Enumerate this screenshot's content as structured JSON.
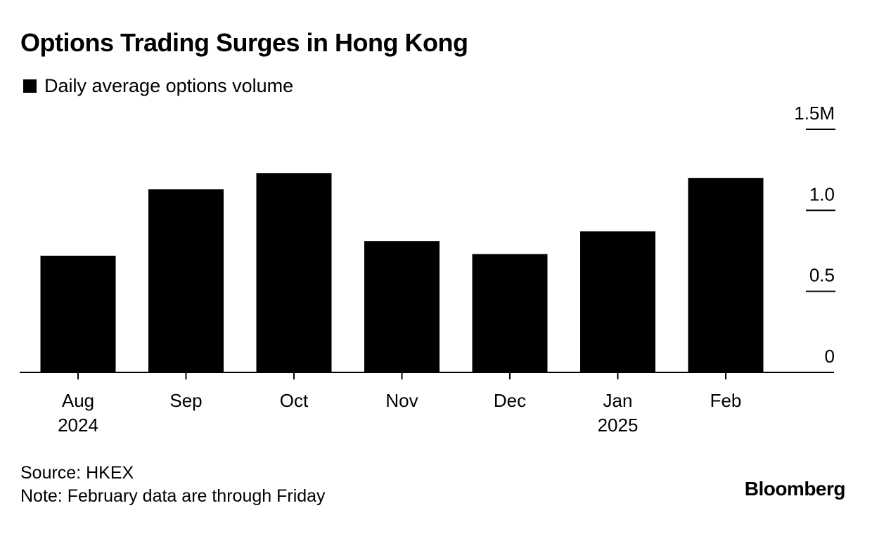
{
  "title": "Options Trading Surges in Hong Kong",
  "legend": {
    "label": "Daily average options volume",
    "color": "#000000"
  },
  "chart_data": {
    "type": "bar",
    "title": "Options Trading Surges in Hong Kong",
    "categories": [
      "Aug",
      "Sep",
      "Oct",
      "Nov",
      "Dec",
      "Jan",
      "Feb"
    ],
    "year_labels": [
      "2024",
      "",
      "",
      "",
      "",
      "2025",
      ""
    ],
    "series": [
      {
        "name": "Daily average options volume",
        "values": [
          0.72,
          1.13,
          1.23,
          0.81,
          0.73,
          0.87,
          1.2
        ],
        "color": "#000000"
      }
    ],
    "ylim": [
      0,
      1.5
    ],
    "yticks": [
      0,
      0.5,
      1.0,
      1.5
    ],
    "ytick_labels": [
      "0",
      "0.5",
      "1.0",
      "1.5M"
    ],
    "y_axis_side": "right",
    "xlabel": "",
    "ylabel": "",
    "grid": false
  },
  "footer": {
    "source": "Source: HKEX",
    "note": "Note: February data are through Friday"
  },
  "brand": "Bloomberg"
}
